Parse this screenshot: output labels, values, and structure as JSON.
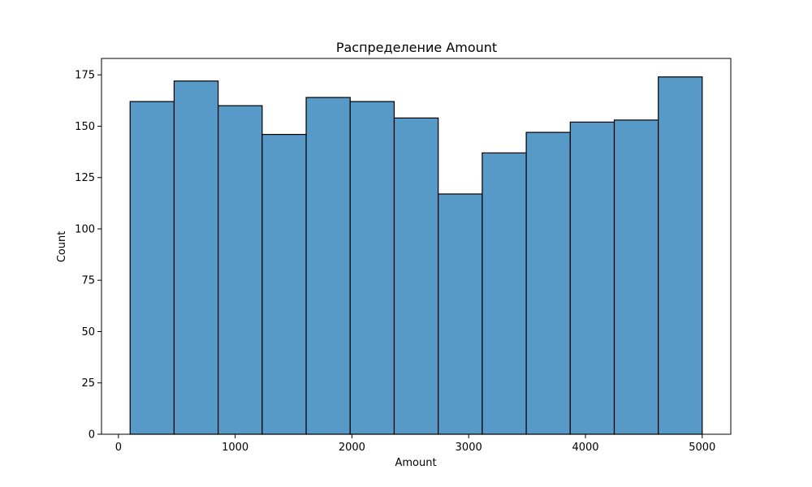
{
  "chart_data": {
    "type": "bar",
    "title": "Распределение Amount",
    "xlabel": "Amount",
    "ylabel": "Count",
    "bins": [
      {
        "x0": 100,
        "x1": 477,
        "count": 162
      },
      {
        "x0": 477,
        "x1": 854,
        "count": 172
      },
      {
        "x0": 854,
        "x1": 1231,
        "count": 160
      },
      {
        "x0": 1231,
        "x1": 1608,
        "count": 146
      },
      {
        "x0": 1608,
        "x1": 1985,
        "count": 164
      },
      {
        "x0": 1985,
        "x1": 2362,
        "count": 162
      },
      {
        "x0": 2362,
        "x1": 2739,
        "count": 154
      },
      {
        "x0": 2739,
        "x1": 3116,
        "count": 117
      },
      {
        "x0": 3116,
        "x1": 3493,
        "count": 137
      },
      {
        "x0": 3493,
        "x1": 3870,
        "count": 147
      },
      {
        "x0": 3870,
        "x1": 4247,
        "count": 152
      },
      {
        "x0": 4247,
        "x1": 4624,
        "count": 153
      },
      {
        "x0": 4624,
        "x1": 5000,
        "count": 174
      }
    ],
    "xlim": [
      -145,
      5245
    ],
    "ylim": [
      0,
      183
    ],
    "xticks": [
      0,
      1000,
      2000,
      3000,
      4000,
      5000
    ],
    "yticks": [
      0,
      25,
      50,
      75,
      100,
      125,
      150,
      175
    ],
    "grid": false,
    "bar_color": "#5799c7",
    "edge_color": "#000000"
  }
}
